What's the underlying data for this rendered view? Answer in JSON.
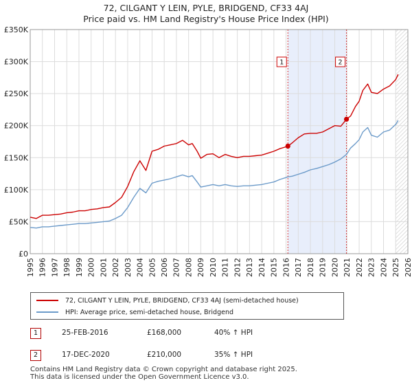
{
  "title_line1": "72, CILGANT Y LEIN, PYLE, BRIDGEND, CF33 4AJ",
  "title_line2": "Price paid vs. HM Land Registry's House Price Index (HPI)",
  "colors": {
    "red": "#cc0000",
    "blue": "#6b9ac9",
    "shade": "#e8eefb",
    "marker": "#cc0000"
  },
  "legend": {
    "red_label": "72, CILGANT Y LEIN, PYLE, BRIDGEND, CF33 4AJ (semi-detached house)",
    "blue_label": "HPI: Average price, semi-detached house, Bridgend"
  },
  "sales": [
    {
      "num": "1",
      "date": "25-FEB-2016",
      "price": "£168,000",
      "hpi": "40% ↑ HPI"
    },
    {
      "num": "2",
      "date": "17-DEC-2020",
      "price": "£210,000",
      "hpi": "35% ↑ HPI"
    }
  ],
  "footer": {
    "line1": "Contains HM Land Registry data © Crown copyright and database right 2025.",
    "line2": "This data is licensed under the Open Government Licence v3.0."
  },
  "chart_data": {
    "type": "line",
    "title": "72, CILGANT Y LEIN, PYLE, BRIDGEND, CF33 4AJ — Price paid vs. HM Land Registry's House Price Index (HPI)",
    "xlabel": "",
    "ylabel": "",
    "xlim": [
      1995,
      2026
    ],
    "ylim": [
      0,
      350000
    ],
    "x_ticks": [
      1995,
      1996,
      1997,
      1998,
      1999,
      2000,
      2001,
      2002,
      2003,
      2004,
      2005,
      2006,
      2007,
      2008,
      2009,
      2010,
      2011,
      2012,
      2013,
      2014,
      2015,
      2016,
      2017,
      2018,
      2019,
      2020,
      2021,
      2022,
      2023,
      2024,
      2025,
      2026
    ],
    "y_ticks": [
      0,
      50000,
      100000,
      150000,
      200000,
      250000,
      300000,
      350000
    ],
    "y_tick_labels": [
      "£0",
      "£50K",
      "£100K",
      "£150K",
      "£200K",
      "£250K",
      "£300K",
      "£350K"
    ],
    "shaded_period": [
      2016.15,
      2020.96
    ],
    "hatched_from": 2025.0,
    "series": [
      {
        "name": "72, CILGANT Y LEIN, PYLE, BRIDGEND, CF33 4AJ (semi-detached house)",
        "color": "red",
        "x": [
          1995,
          1995.5,
          1996,
          1996.5,
          1997,
          1997.5,
          1998,
          1998.5,
          1999,
          1999.5,
          2000,
          2000.5,
          2001,
          2001.5,
          2002,
          2002.5,
          2003,
          2003.5,
          2004,
          2004.5,
          2005,
          2005.5,
          2006,
          2006.5,
          2007,
          2007.5,
          2008,
          2008.3,
          2008.7,
          2009,
          2009.5,
          2010,
          2010.5,
          2011,
          2011.5,
          2012,
          2012.5,
          2013,
          2013.5,
          2014,
          2014.5,
          2015,
          2015.5,
          2016,
          2016.15,
          2016.5,
          2017,
          2017.5,
          2018,
          2018.5,
          2019,
          2019.5,
          2020,
          2020.5,
          2020.96,
          2021.3,
          2021.7,
          2022,
          2022.3,
          2022.7,
          2023,
          2023.5,
          2024,
          2024.5,
          2025,
          2025.2
        ],
        "values": [
          57000,
          55000,
          60000,
          60000,
          61000,
          62000,
          64000,
          65000,
          67000,
          67000,
          69000,
          70000,
          72000,
          73000,
          80000,
          88000,
          105000,
          128000,
          145000,
          130000,
          160000,
          163000,
          168000,
          170000,
          172000,
          177000,
          170000,
          172000,
          160000,
          149000,
          155000,
          156000,
          150000,
          155000,
          152000,
          150000,
          152000,
          152000,
          153000,
          154000,
          157000,
          160000,
          164000,
          167000,
          168000,
          173000,
          181000,
          187000,
          188000,
          188000,
          190000,
          195000,
          200000,
          199000,
          210000,
          215000,
          230000,
          238000,
          255000,
          265000,
          252000,
          250000,
          257000,
          262000,
          272000,
          280000
        ]
      },
      {
        "name": "HPI: Average price, semi-detached house, Bridgend",
        "color": "blue",
        "x": [
          1995,
          1995.5,
          1996,
          1996.5,
          1997,
          1997.5,
          1998,
          1998.5,
          1999,
          1999.5,
          2000,
          2000.5,
          2001,
          2001.5,
          2002,
          2002.5,
          2003,
          2003.5,
          2004,
          2004.5,
          2005,
          2005.5,
          2006,
          2006.5,
          2007,
          2007.5,
          2008,
          2008.3,
          2008.7,
          2009,
          2009.5,
          2010,
          2010.5,
          2011,
          2011.5,
          2012,
          2012.5,
          2013,
          2013.5,
          2014,
          2014.5,
          2015,
          2015.5,
          2016,
          2016.15,
          2016.5,
          2017,
          2017.5,
          2018,
          2018.5,
          2019,
          2019.5,
          2020,
          2020.5,
          2020.96,
          2021.3,
          2021.7,
          2022,
          2022.3,
          2022.7,
          2023,
          2023.5,
          2024,
          2024.5,
          2025,
          2025.2
        ],
        "values": [
          41000,
          40000,
          42000,
          42000,
          43000,
          44000,
          45000,
          46000,
          47000,
          47000,
          48000,
          49000,
          50000,
          51000,
          55000,
          60000,
          72000,
          88000,
          102000,
          95000,
          110000,
          113000,
          115000,
          117000,
          120000,
          123000,
          120000,
          122000,
          112000,
          104000,
          106000,
          108000,
          106000,
          108000,
          106000,
          105000,
          106000,
          106000,
          107000,
          108000,
          110000,
          112000,
          116000,
          119000,
          120000,
          121000,
          124000,
          127000,
          131000,
          133000,
          136000,
          139000,
          143000,
          148000,
          155000,
          165000,
          172000,
          178000,
          190000,
          197000,
          185000,
          182000,
          190000,
          193000,
          202000,
          208000
        ]
      }
    ],
    "annotations": [
      {
        "label": "1",
        "x": 2016.15,
        "y": 168000
      },
      {
        "label": "2",
        "x": 2020.96,
        "y": 210000
      }
    ]
  }
}
